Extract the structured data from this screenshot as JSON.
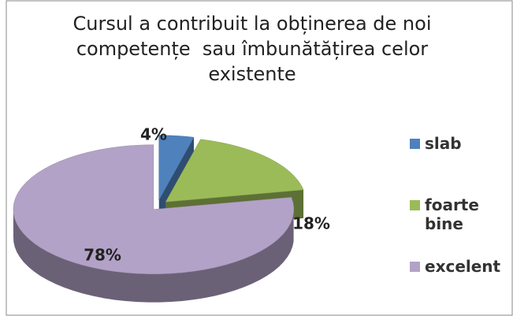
{
  "chart_data": {
    "type": "pie",
    "title": "Cursul a contribuit la obținerea de noi competențe  sau îmbunătățirea celor existente",
    "categories": [
      "slab",
      "foarte bine",
      "excelent"
    ],
    "values": [
      4,
      18,
      78
    ],
    "value_labels": [
      "4%",
      "18%",
      "78%"
    ],
    "colors": [
      "#4f81bd",
      "#9bbb59",
      "#b3a2c7"
    ],
    "legend": "right"
  }
}
